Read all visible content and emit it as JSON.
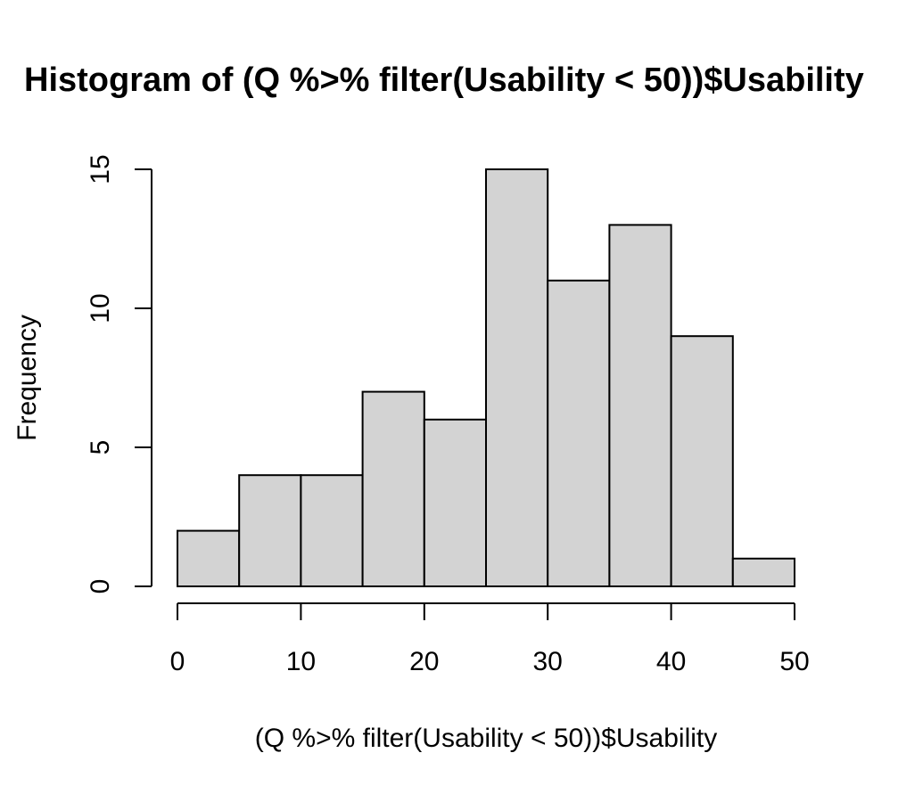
{
  "chart_data": {
    "type": "bar",
    "title": "Histogram of (Q %>% filter(Usability < 50))$Usability",
    "xlabel": "(Q %>% filter(Usability < 50))$Usability",
    "ylabel": "Frequency",
    "bin_edges": [
      0,
      5,
      10,
      15,
      20,
      25,
      30,
      35,
      40,
      45,
      50
    ],
    "values": [
      2,
      4,
      4,
      7,
      6,
      15,
      11,
      13,
      9,
      1
    ],
    "xlim": [
      0,
      50
    ],
    "ylim": [
      0,
      15
    ],
    "x_ticks": [
      "0",
      "10",
      "20",
      "30",
      "40",
      "50"
    ],
    "y_ticks": [
      "0",
      "5",
      "10",
      "15"
    ],
    "bar_fill": "#d3d3d3",
    "bar_stroke": "#000000",
    "grid": false
  }
}
